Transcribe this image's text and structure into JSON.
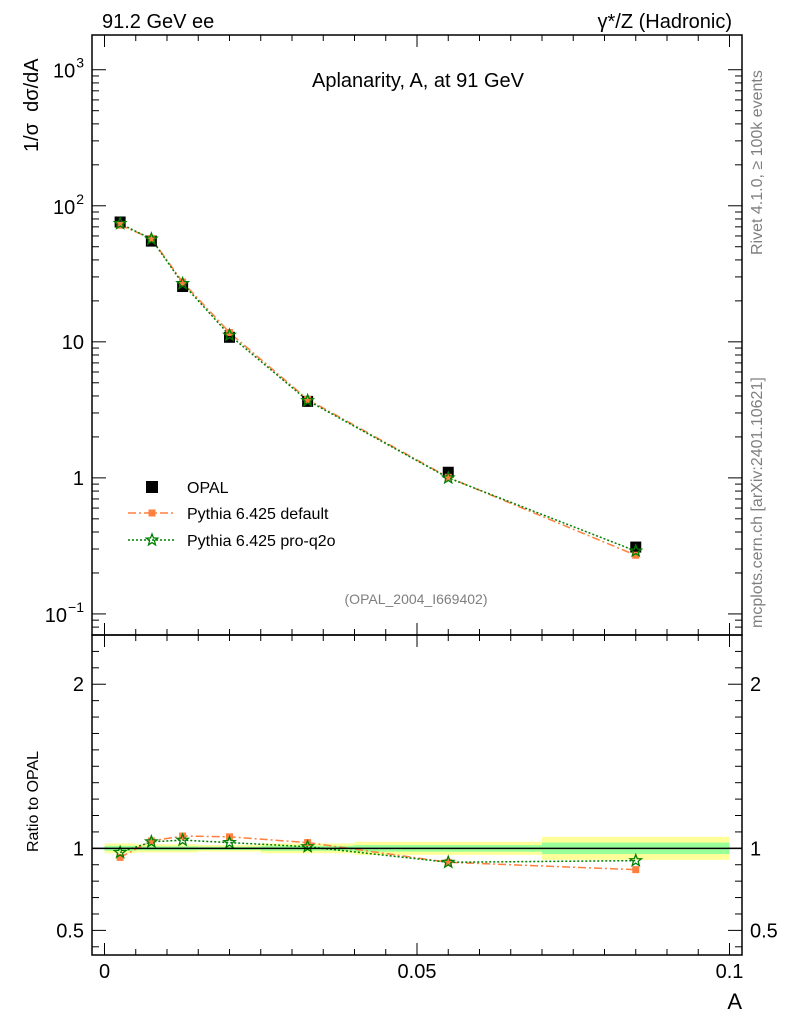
{
  "chart_data": {
    "type": "line",
    "header_left": "91.2 GeV ee",
    "header_right": "γ*/Z (Hadronic)",
    "title": "Aplanarity, A, at 91 GeV",
    "analysis_tag": "(OPAL_2004_I669402)",
    "side_label_top": "Rivet 4.1.0, ≥ 100k events",
    "side_label_bottom": "mcplots.cern.ch [arXiv:2401.10621]",
    "ylabel": "1/σ  dσ/dA",
    "xlabel": "A",
    "ratio_ylabel": "Ratio to OPAL",
    "xlim": [
      -0.002,
      0.102
    ],
    "ylim_log": [
      0.07,
      1800
    ],
    "ratio_ylim": [
      0.35,
      2.3
    ],
    "x_ticks": [
      {
        "v": 0,
        "label": "0"
      },
      {
        "v": 0.05,
        "label": "0.05"
      },
      {
        "v": 0.1,
        "label": "0.1"
      }
    ],
    "y_ticks": [
      {
        "v": 0.1,
        "base": "10",
        "exp": "−1"
      },
      {
        "v": 1,
        "base": "1",
        "exp": ""
      },
      {
        "v": 10,
        "base": "10",
        "exp": ""
      },
      {
        "v": 100,
        "base": "10",
        "exp": "2"
      },
      {
        "v": 1000,
        "base": "10",
        "exp": "3"
      }
    ],
    "ratio_ticks": [
      {
        "v": 0.5,
        "label": "0.5"
      },
      {
        "v": 1,
        "label": "1"
      },
      {
        "v": 2,
        "label": "2"
      }
    ],
    "bins": [
      {
        "lo": 0.0,
        "hi": 0.005
      },
      {
        "lo": 0.005,
        "hi": 0.01
      },
      {
        "lo": 0.01,
        "hi": 0.015
      },
      {
        "lo": 0.015,
        "hi": 0.025
      },
      {
        "lo": 0.025,
        "hi": 0.04
      },
      {
        "lo": 0.04,
        "hi": 0.07
      },
      {
        "lo": 0.07,
        "hi": 0.1
      }
    ],
    "x": [
      0.0025,
      0.0075,
      0.0125,
      0.02,
      0.0325,
      0.055,
      0.085
    ],
    "band_inner": [
      0.015,
      0.012,
      0.012,
      0.01,
      0.015,
      0.02,
      0.035
    ],
    "band_outer": [
      0.03,
      0.025,
      0.025,
      0.02,
      0.03,
      0.04,
      0.07
    ],
    "legend_entries": [
      "OPAL",
      "Pythia 6.425 default",
      "Pythia 6.425 pro-q2o"
    ],
    "series": [
      {
        "name": "OPAL",
        "values": [
          76,
          55,
          25.5,
          10.8,
          3.65,
          1.1,
          0.31
        ],
        "ratio": [
          1,
          1,
          1,
          1,
          1,
          1,
          1
        ],
        "color": "#000000"
      },
      {
        "name": "Pythia 6.425 default",
        "values": [
          72,
          57.5,
          27.5,
          11.7,
          3.77,
          1.01,
          0.27
        ],
        "ratio": [
          0.945,
          1.045,
          1.075,
          1.07,
          1.035,
          0.915,
          0.87
        ],
        "color": "#ff7f3f"
      },
      {
        "name": "Pythia 6.425 pro-q2o",
        "values": [
          74,
          57,
          26.8,
          11.2,
          3.7,
          1.0,
          0.29
        ],
        "ratio": [
          0.975,
          1.04,
          1.05,
          1.035,
          1.01,
          0.915,
          0.925
        ],
        "color": "#007f00"
      }
    ],
    "colors": {
      "band_outer": "#ffff99",
      "band_inner": "#99ff99",
      "default_line": "#ff7f3f",
      "pro_line": "#007f00"
    }
  }
}
